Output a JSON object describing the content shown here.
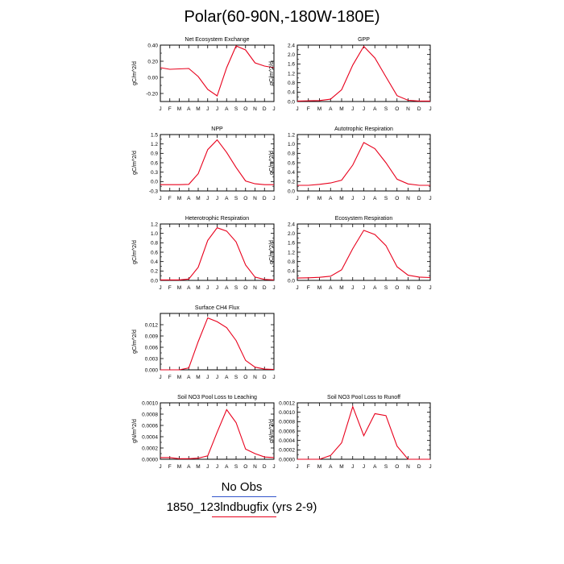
{
  "title": "Polar(60-90N,-180W-180E)",
  "legend": {
    "obs_label": "No Obs",
    "obs_color": "#3355cc",
    "model_label": "1850_123lndbugfix (yrs 2-9)",
    "model_color": "#e8001c"
  },
  "months": [
    "J",
    "F",
    "M",
    "A",
    "M",
    "J",
    "J",
    "A",
    "S",
    "O",
    "N",
    "D",
    "J"
  ],
  "chart_data": [
    {
      "type": "line",
      "title": "Net Ecosystem Exchange",
      "ylabel": "gC/m^2/d",
      "ylim": [
        -0.3,
        0.4
      ],
      "yticks": [
        -0.2,
        0.0,
        0.2,
        0.4
      ],
      "ytick_labels": [
        "-0.20",
        "0.00",
        "0.20",
        "0.40"
      ],
      "x": [
        "J",
        "F",
        "M",
        "A",
        "M",
        "J",
        "J",
        "A",
        "S",
        "O",
        "N",
        "D",
        "J"
      ],
      "series": [
        {
          "values": [
            0.12,
            0.1,
            0.105,
            0.11,
            0.01,
            -0.15,
            -0.23,
            0.12,
            0.39,
            0.34,
            0.18,
            0.14,
            0.12
          ]
        }
      ]
    },
    {
      "type": "line",
      "title": "GPP",
      "ylabel": "gC/m^2/d",
      "ylim": [
        0.0,
        2.4
      ],
      "yticks": [
        0.0,
        0.4,
        0.8,
        1.2,
        1.6,
        2.0,
        2.4
      ],
      "ytick_labels": [
        "0.0",
        "0.4",
        "0.8",
        "1.2",
        "1.6",
        "2.0",
        "2.4"
      ],
      "x": [
        "J",
        "F",
        "M",
        "A",
        "M",
        "J",
        "J",
        "A",
        "S",
        "O",
        "N",
        "D",
        "J"
      ],
      "series": [
        {
          "values": [
            0.02,
            0.03,
            0.04,
            0.1,
            0.5,
            1.55,
            2.35,
            1.85,
            1.05,
            0.25,
            0.05,
            0.02,
            0.02
          ]
        }
      ]
    },
    {
      "type": "line",
      "title": "NPP",
      "ylabel": "gC/m^2/d",
      "ylim": [
        -0.3,
        1.5
      ],
      "yticks": [
        -0.3,
        0.0,
        0.3,
        0.6,
        0.9,
        1.2,
        1.5
      ],
      "ytick_labels": [
        "-0.3",
        "0.0",
        "0.3",
        "0.6",
        "0.9",
        "1.2",
        "1.5"
      ],
      "x": [
        "J",
        "F",
        "M",
        "A",
        "M",
        "J",
        "J",
        "A",
        "S",
        "O",
        "N",
        "D",
        "J"
      ],
      "series": [
        {
          "values": [
            -0.1,
            -0.1,
            -0.1,
            -0.09,
            0.25,
            1.02,
            1.33,
            0.93,
            0.45,
            0.02,
            -0.07,
            -0.1,
            -0.1
          ]
        }
      ]
    },
    {
      "type": "line",
      "title": "Autotrophic Respiration",
      "ylabel": "gC/m^2/d",
      "ylim": [
        0.0,
        1.2
      ],
      "yticks": [
        0.0,
        0.2,
        0.4,
        0.6,
        0.8,
        1.0,
        1.2
      ],
      "ytick_labels": [
        "0.0",
        "0.2",
        "0.4",
        "0.6",
        "0.8",
        "1.0",
        "1.2"
      ],
      "x": [
        "J",
        "F",
        "M",
        "A",
        "M",
        "J",
        "J",
        "A",
        "S",
        "O",
        "N",
        "D",
        "J"
      ],
      "series": [
        {
          "values": [
            0.12,
            0.12,
            0.14,
            0.17,
            0.23,
            0.55,
            1.03,
            0.9,
            0.6,
            0.25,
            0.15,
            0.12,
            0.12
          ]
        }
      ]
    },
    {
      "type": "line",
      "title": "Heterotrophic Respiration",
      "ylabel": "gC/m^2/d",
      "ylim": [
        0.0,
        1.2
      ],
      "yticks": [
        0.0,
        0.2,
        0.4,
        0.6,
        0.8,
        1.0,
        1.2
      ],
      "ytick_labels": [
        "0.0",
        "0.2",
        "0.4",
        "0.6",
        "0.8",
        "1.0",
        "1.2"
      ],
      "x": [
        "J",
        "F",
        "M",
        "A",
        "M",
        "J",
        "J",
        "A",
        "S",
        "O",
        "N",
        "D",
        "J"
      ],
      "series": [
        {
          "values": [
            0.01,
            0.01,
            0.01,
            0.03,
            0.28,
            0.85,
            1.12,
            1.05,
            0.82,
            0.33,
            0.07,
            0.02,
            0.01
          ]
        }
      ]
    },
    {
      "type": "line",
      "title": "Ecosystem Respiration",
      "ylabel": "gC/m^2/d",
      "ylim": [
        0.0,
        2.4
      ],
      "yticks": [
        0.0,
        0.4,
        0.8,
        1.2,
        1.6,
        2.0,
        2.4
      ],
      "ytick_labels": [
        "0.0",
        "0.4",
        "0.8",
        "1.2",
        "1.6",
        "2.0",
        "2.4"
      ],
      "x": [
        "J",
        "F",
        "M",
        "A",
        "M",
        "J",
        "J",
        "A",
        "S",
        "O",
        "N",
        "D",
        "J"
      ],
      "series": [
        {
          "values": [
            0.1,
            0.11,
            0.13,
            0.18,
            0.45,
            1.35,
            2.13,
            1.95,
            1.48,
            0.58,
            0.22,
            0.14,
            0.12
          ]
        }
      ]
    },
    {
      "type": "line",
      "title": "Surface CH4 Flux",
      "ylabel": "gC/m^2/d",
      "ylim": [
        0.0,
        0.015
      ],
      "yticks": [
        0.0,
        0.003,
        0.006,
        0.009,
        0.012
      ],
      "ytick_labels": [
        "0.000",
        "0.003",
        "0.006",
        "0.009",
        "0.012"
      ],
      "x": [
        "J",
        "F",
        "M",
        "A",
        "M",
        "J",
        "J",
        "A",
        "S",
        "O",
        "N",
        "D",
        "J"
      ],
      "series": [
        {
          "values": [
            0.0,
            0.0,
            0.0,
            0.0005,
            0.0075,
            0.0138,
            0.0128,
            0.0112,
            0.0078,
            0.0025,
            0.0007,
            0.0002,
            0.0001
          ]
        }
      ]
    },
    {
      "type": "line",
      "title": "Soil NO3 Pool Loss to Leaching",
      "ylabel": "gN/m^2/d",
      "ylim": [
        0.0,
        0.001
      ],
      "yticks": [
        0.0,
        0.0002,
        0.0004,
        0.0006,
        0.0008,
        0.001
      ],
      "ytick_labels": [
        "0.0000",
        "0.0002",
        "0.0004",
        "0.0006",
        "0.0008",
        "0.0010"
      ],
      "x": [
        "J",
        "F",
        "M",
        "A",
        "M",
        "J",
        "J",
        "A",
        "S",
        "O",
        "N",
        "D",
        "J"
      ],
      "series": [
        {
          "values": [
            3e-05,
            3e-05,
            1e-05,
            1e-05,
            2e-05,
            6e-05,
            0.00048,
            0.00088,
            0.00065,
            0.00018,
            0.0001,
            4e-05,
            3e-05
          ]
        }
      ]
    },
    {
      "type": "line",
      "title": "Soil NO3 Pool Loss to Runoff",
      "ylabel": "gN/m^2/d",
      "ylim": [
        0.0,
        0.0012
      ],
      "yticks": [
        0.0,
        0.0002,
        0.0004,
        0.0006,
        0.0008,
        0.001,
        0.0012
      ],
      "ytick_labels": [
        "0.0000",
        "0.0002",
        "0.0004",
        "0.0006",
        "0.0008",
        "0.0010",
        "0.0012"
      ],
      "x": [
        "J",
        "F",
        "M",
        "A",
        "M",
        "J",
        "J",
        "A",
        "S",
        "O",
        "N",
        "D",
        "J"
      ],
      "series": [
        {
          "values": [
            0.0,
            0.0,
            0.0,
            8e-05,
            0.00035,
            0.00112,
            0.0005,
            0.00097,
            0.00093,
            0.00028,
            0.0,
            0.0,
            0.0
          ]
        }
      ]
    }
  ]
}
